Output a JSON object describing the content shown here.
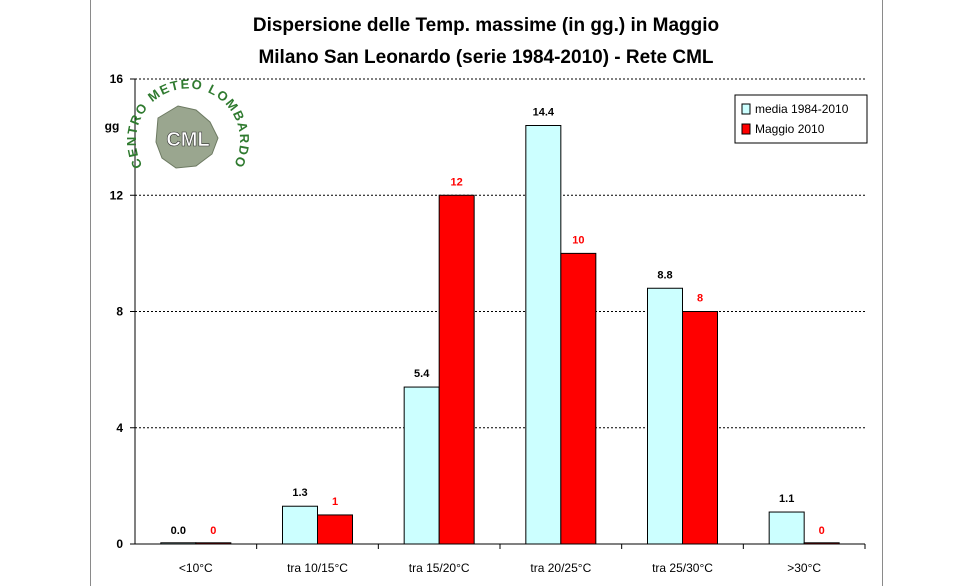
{
  "chart_data": {
    "type": "bar",
    "title": "Dispersione delle Temp. massime (in gg.) in Maggio",
    "subtitle": "Milano San Leonardo (serie 1984-2010) - Rete CML",
    "ylabel": "gg",
    "xlabel": "",
    "ylim": [
      0,
      16
    ],
    "yticks": [
      0,
      4,
      8,
      12,
      16
    ],
    "categories": [
      "<10°C",
      "tra 10/15°C",
      "tra 15/20°C",
      "tra 20/25°C",
      "tra 25/30°C",
      ">30°C"
    ],
    "series": [
      {
        "name": "media 1984-2010",
        "color": "#ccffff",
        "label_color": "#000000",
        "values": [
          0.0,
          1.3,
          5.4,
          14.4,
          8.8,
          1.1
        ],
        "labels": [
          "0.0",
          "1.3",
          "5.4",
          "14.4",
          "8.8",
          "1.1"
        ]
      },
      {
        "name": "Maggio 2010",
        "color": "#ff0000",
        "label_color": "#ff0000",
        "values": [
          0,
          1,
          12,
          10,
          8,
          0
        ],
        "labels": [
          "0",
          "1",
          "12",
          "10",
          "8",
          "0"
        ]
      }
    ],
    "grid": "horizontal dashed",
    "legend_position": "top-right"
  },
  "logo": {
    "name": "CENTRO METEO LOMBARDO",
    "abbr": "CML",
    "color": "#2f7a2f"
  }
}
